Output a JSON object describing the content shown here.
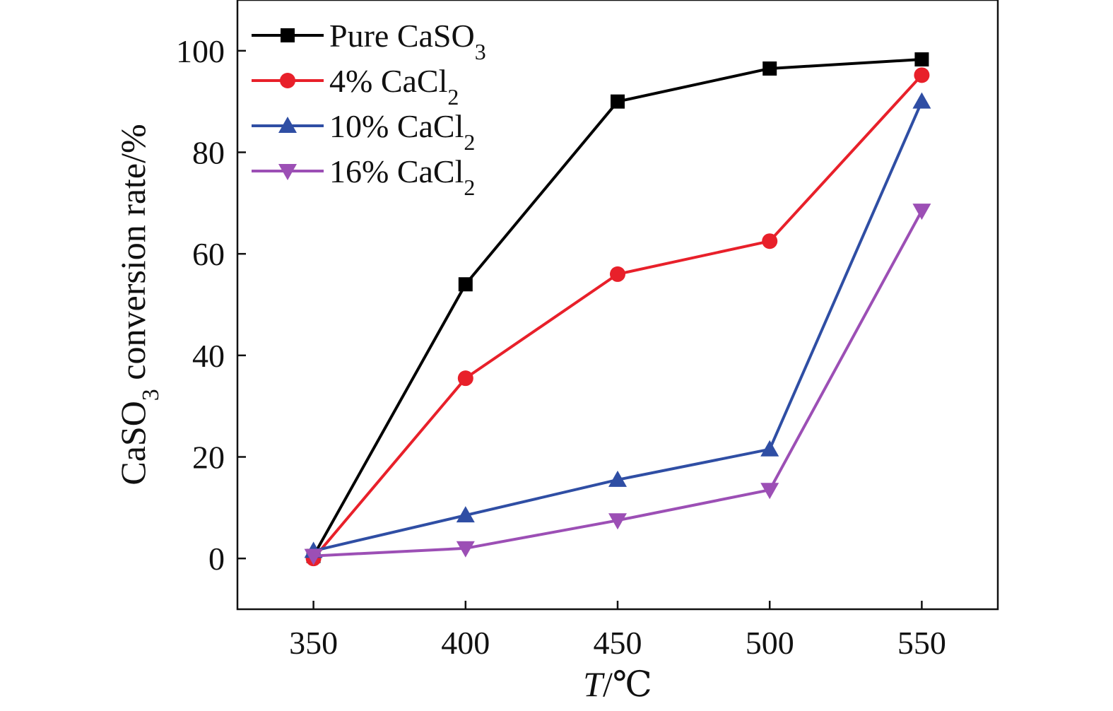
{
  "chart_data": {
    "type": "line",
    "title": "",
    "xlabel": {
      "italic": "T",
      "rest": "/℃"
    },
    "ylabel": {
      "pre": "CaSO",
      "sub": "3",
      "post": " conversion rate/%"
    },
    "x": [
      350,
      400,
      450,
      500,
      550
    ],
    "xlim": [
      325,
      575
    ],
    "ylim": [
      -10,
      110
    ],
    "xticks": [
      350,
      400,
      450,
      500,
      550
    ],
    "yticks": [
      0,
      20,
      40,
      60,
      80,
      100
    ],
    "grid": false,
    "legend_position": "top-left",
    "series": [
      {
        "name": "Pure CaSO3",
        "label_main": "Pure CaSO",
        "label_sub": "3",
        "color": "#000000",
        "marker": "square",
        "values": [
          0.5,
          54,
          90,
          96.5,
          98.3
        ]
      },
      {
        "name": "4% CaCl2",
        "label_main": "4% CaCl",
        "label_sub": "2",
        "color": "#e8202a",
        "marker": "circle",
        "values": [
          0,
          35.5,
          56,
          62.5,
          95.2
        ]
      },
      {
        "name": "10% CaCl2",
        "label_main": "10% CaCl",
        "label_sub": "2",
        "color": "#2f4ea4",
        "marker": "triangle-up",
        "values": [
          1.5,
          8.5,
          15.5,
          21.5,
          90
        ]
      },
      {
        "name": "16% CaCl2",
        "label_main": "16% CaCl",
        "label_sub": "2",
        "color": "#9c4fb5",
        "marker": "triangle-down",
        "values": [
          0.5,
          2,
          7.5,
          13.5,
          68.5
        ]
      }
    ]
  }
}
